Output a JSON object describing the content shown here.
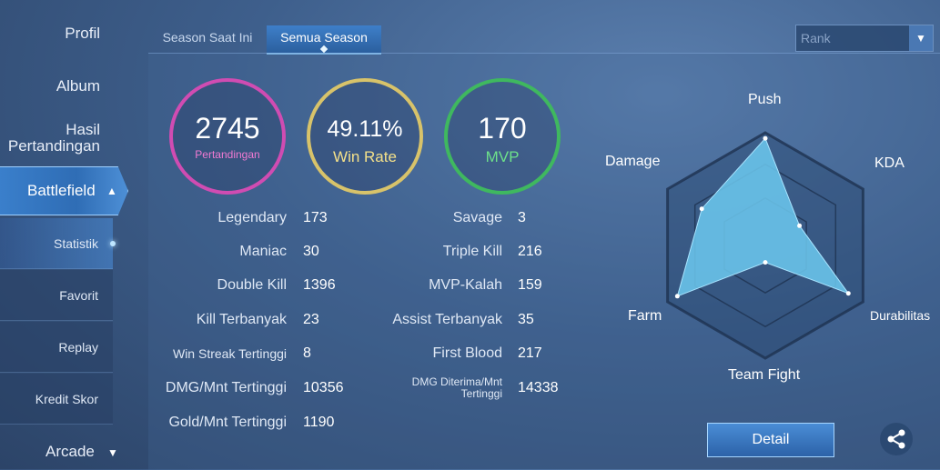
{
  "sidebar": {
    "profil": "Profil",
    "album": "Album",
    "hasil_line1": "Hasil",
    "hasil_line2": "Pertandingan",
    "battlefield": "Battlefield",
    "sub_items": [
      "Statistik",
      "Favorit",
      "Replay",
      "Kredit Skor"
    ],
    "arcade": "Arcade"
  },
  "tabs": [
    "Season Saat Ini",
    "Semua Season"
  ],
  "rank_select": {
    "value": "Rank"
  },
  "summary": {
    "matches": {
      "value": "2745",
      "label": "Pertandingan",
      "color": "#d04cb2"
    },
    "win_rate": {
      "value": "49.11%",
      "label": "Win Rate",
      "color": "#d8c36a"
    },
    "mvp": {
      "value": "170",
      "label": "MVP",
      "color": "#3fb85f"
    }
  },
  "stats_left": [
    {
      "label": "Legendary",
      "value": "173"
    },
    {
      "label": "Maniac",
      "value": "30"
    },
    {
      "label": "Double Kill",
      "value": "1396"
    },
    {
      "label": "Kill Terbanyak",
      "value": "23"
    },
    {
      "label": "Win Streak Tertinggi",
      "value": "8"
    },
    {
      "label": "DMG/Mnt Tertinggi",
      "value": "10356"
    },
    {
      "label": "Gold/Mnt Tertinggi",
      "value": "1190"
    }
  ],
  "stats_right": [
    {
      "label": "Savage",
      "value": "3"
    },
    {
      "label": "Triple Kill",
      "value": "216"
    },
    {
      "label": "MVP-Kalah",
      "value": "159"
    },
    {
      "label": "Assist Terbanyak",
      "value": "35"
    },
    {
      "label": "First Blood",
      "value": "217"
    },
    {
      "label": "DMG Diterima/Mnt Tertinggi",
      "value": "14338"
    }
  ],
  "radar": {
    "labels": [
      "Push",
      "KDA",
      "Durabilitas",
      "Team Fight",
      "Farm",
      "Damage"
    ],
    "values": [
      0.95,
      0.35,
      0.85,
      0.15,
      0.9,
      0.65
    ],
    "fill_color": "#6cc9f0"
  },
  "buttons": {
    "detail": "Detail"
  },
  "icons": {
    "share": "share-icon",
    "caret_up": "chevron-up-icon",
    "caret_down": "chevron-down-icon"
  }
}
